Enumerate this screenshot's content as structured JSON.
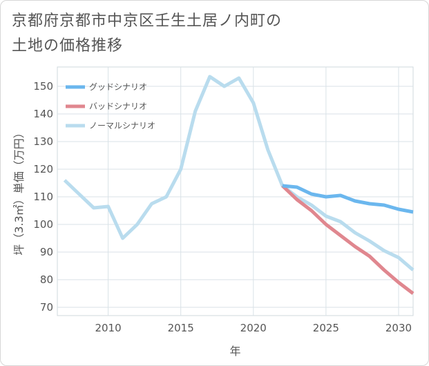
{
  "title_lines": [
    "京都府京都市中京区壬生土居ノ内町の",
    "土地の価格推移"
  ],
  "chart_data": {
    "type": "line",
    "xlabel": "年",
    "ylabel": "坪（3.3㎡）単価（万円）",
    "xlim": [
      2006.5,
      2031
    ],
    "ylim": [
      67,
      157
    ],
    "x_ticks": [
      2010,
      2015,
      2020,
      2025,
      2030
    ],
    "y_ticks": [
      70,
      80,
      90,
      100,
      110,
      120,
      130,
      140,
      150
    ],
    "grid": true,
    "legend_position": "top-left",
    "series": [
      {
        "name": "グッドシナリオ",
        "color": "#6bb7ee",
        "points": [
          [
            2022,
            114
          ],
          [
            2023,
            113.5
          ],
          [
            2024,
            111
          ],
          [
            2025,
            110
          ],
          [
            2026,
            110.5
          ],
          [
            2027,
            108.5
          ],
          [
            2028,
            107.5
          ],
          [
            2029,
            107
          ],
          [
            2030,
            105.5
          ],
          [
            2031,
            104.5
          ]
        ]
      },
      {
        "name": "バッドシナリオ",
        "color": "#e0878f",
        "points": [
          [
            2022,
            114
          ],
          [
            2023,
            109
          ],
          [
            2024,
            105
          ],
          [
            2025,
            100
          ],
          [
            2026,
            96
          ],
          [
            2027,
            92
          ],
          [
            2028,
            88.5
          ],
          [
            2029,
            83.5
          ],
          [
            2030,
            79
          ],
          [
            2031,
            75
          ]
        ]
      },
      {
        "name": "ノーマルシナリオ",
        "color": "#b9dcee",
        "points": [
          [
            2007,
            116
          ],
          [
            2008,
            111
          ],
          [
            2009,
            106
          ],
          [
            2010,
            106.5
          ],
          [
            2011,
            95
          ],
          [
            2012,
            100
          ],
          [
            2013,
            107.5
          ],
          [
            2014,
            110
          ],
          [
            2015,
            120
          ],
          [
            2016,
            141
          ],
          [
            2017,
            153.5
          ],
          [
            2018,
            150
          ],
          [
            2019,
            153
          ],
          [
            2020,
            144
          ],
          [
            2021,
            127
          ],
          [
            2022,
            114
          ],
          [
            2023,
            110
          ],
          [
            2024,
            107
          ],
          [
            2025,
            103
          ],
          [
            2026,
            101
          ],
          [
            2027,
            97
          ],
          [
            2028,
            94
          ],
          [
            2029,
            90.5
          ],
          [
            2030,
            88
          ],
          [
            2031,
            83.5
          ]
        ]
      }
    ]
  }
}
